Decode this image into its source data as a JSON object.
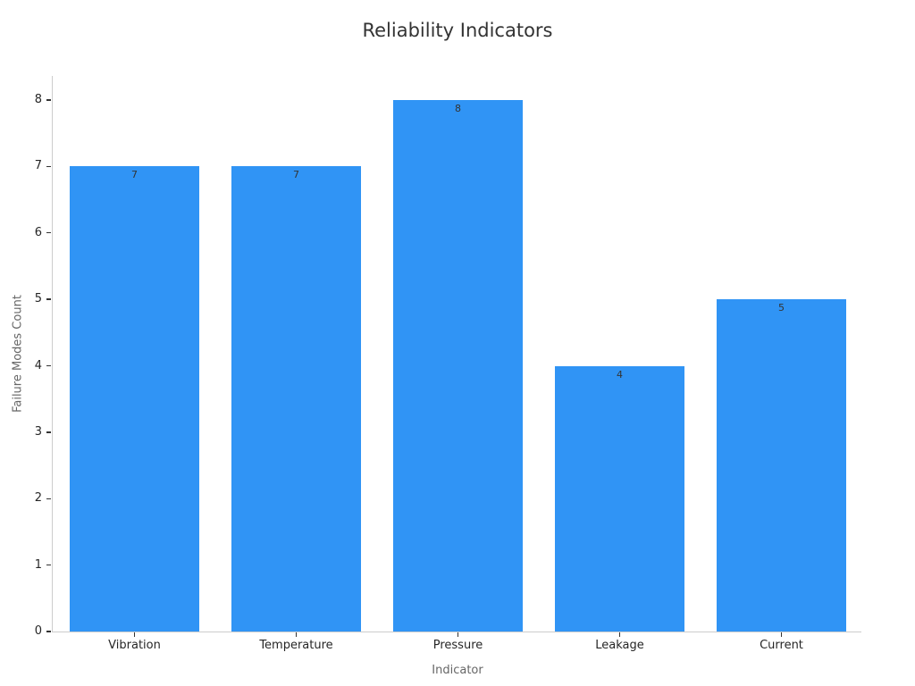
{
  "chart": {
    "title": "Reliability Indicators",
    "xlabel": "Indicator",
    "ylabel": "Failure Modes Count"
  },
  "chart_data": {
    "type": "bar",
    "title": "Reliability Indicators",
    "xlabel": "Indicator",
    "ylabel": "Failure Modes Count",
    "categories": [
      "Vibration",
      "Temperature",
      "Pressure",
      "Leakage",
      "Current"
    ],
    "values": [
      7,
      7,
      8,
      4,
      5
    ],
    "bar_value_labels": [
      "7",
      "7",
      "8",
      "4",
      "5"
    ],
    "yticks": [
      0,
      1,
      2,
      3,
      4,
      5,
      6,
      7,
      8
    ],
    "ylim": [
      0,
      8.4
    ],
    "grid": false,
    "legend": false,
    "bar_color": "#3094F5",
    "colors": {
      "bar": "#3094F5",
      "title_text": "#333333",
      "tick_text": "#262626",
      "axis_label_text": "#666666",
      "spine": "#cccccc",
      "tick_mark": "#333333",
      "bar_value_text": "#333333",
      "background": "#ffffff"
    }
  }
}
